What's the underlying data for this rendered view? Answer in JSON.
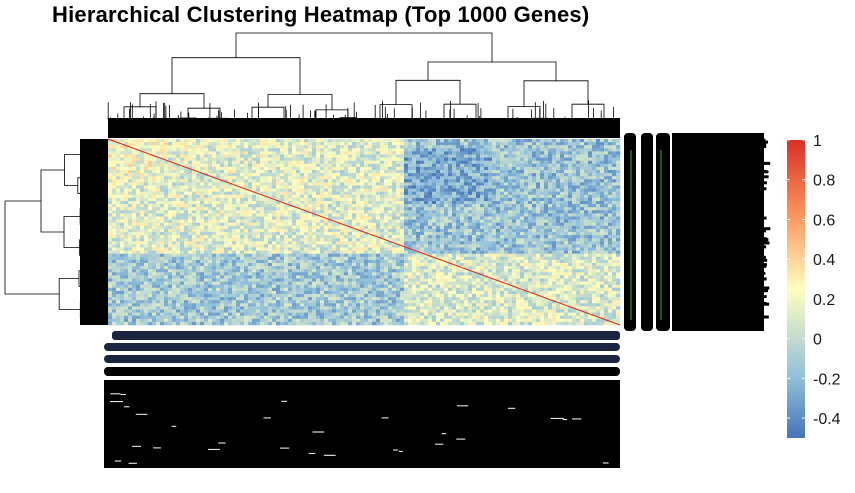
{
  "title": "Hierarchical Clustering Heatmap (Top 1000 Genes)",
  "colors": {
    "low": "#4575b4",
    "mid_low": "#91bfdb",
    "mid": "#ffffbf",
    "mid_high": "#fc8d59",
    "high": "#d73027",
    "label_overplot": "#000000",
    "label_band": "#1b2540"
  },
  "chart_data": {
    "type": "heatmap",
    "title": "Hierarchical Clustering Heatmap (Top 1000 Genes)",
    "matrix": "gene-gene correlation (diagonal = 1)",
    "n_genes": 1000,
    "row_dendrogram": true,
    "col_dendrogram": true,
    "row_labels_overplotted": true,
    "col_labels_overplotted": true,
    "color_scale": {
      "min": -0.5,
      "max": 1,
      "ticks": [
        1,
        0.8,
        0.6,
        0.4,
        0.2,
        0,
        -0.2,
        -0.4
      ],
      "tick_labels": [
        "1",
        "0.8",
        "0.6",
        "0.4",
        "0.2",
        "0",
        "-0.2",
        "-0.4"
      ]
    },
    "legend_position": "right",
    "blocks": [
      {
        "row_from": 0.0,
        "row_to": 0.62,
        "col_from": 0.0,
        "col_to": 0.58,
        "value": 0.12
      },
      {
        "row_from": 0.0,
        "row_to": 0.62,
        "col_from": 0.58,
        "col_to": 1.0,
        "value": -0.15
      },
      {
        "row_from": 0.62,
        "row_to": 1.0,
        "col_from": 0.0,
        "col_to": 0.58,
        "value": -0.12
      },
      {
        "row_from": 0.62,
        "row_to": 1.0,
        "col_from": 0.58,
        "col_to": 1.0,
        "value": 0.1
      }
    ]
  }
}
